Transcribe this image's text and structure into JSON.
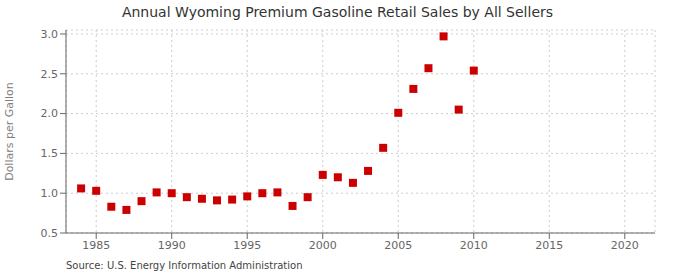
{
  "chart_data": {
    "type": "scatter",
    "title": "Annual Wyoming Premium Gasoline Retail Sales by All Sellers",
    "y_label": "Dollars per Gallon",
    "annotations": [
      "Source: U.S. Energy Information Administration"
    ],
    "x": [
      1984,
      1985,
      1986,
      1987,
      1988,
      1989,
      1990,
      1991,
      1992,
      1993,
      1994,
      1995,
      1996,
      1997,
      1998,
      1999,
      2000,
      2001,
      2002,
      2003,
      2004,
      2005,
      2006,
      2007,
      2008,
      2009,
      2010
    ],
    "values": [
      1.06,
      1.03,
      0.83,
      0.79,
      0.9,
      1.01,
      1.0,
      0.95,
      0.93,
      0.91,
      0.92,
      0.96,
      1.0,
      1.01,
      0.84,
      0.95,
      1.23,
      1.2,
      1.13,
      1.28,
      1.57,
      2.01,
      2.31,
      2.57,
      2.97,
      2.05,
      2.54
    ],
    "color": "#cc0000",
    "marker": "square",
    "xlim": [
      1983,
      2022
    ],
    "ylim": [
      0.5,
      3.05
    ],
    "xticks": [
      1985,
      1990,
      1995,
      2000,
      2005,
      2010,
      2015,
      2020
    ],
    "yticks": [
      0.5,
      {
        "value": 1,
        "label": "1.0"
      },
      1.5,
      {
        "value": 2,
        "label": "2.0"
      },
      2.5,
      {
        "value": 3,
        "label": "3.0"
      }
    ],
    "grid": true
  }
}
